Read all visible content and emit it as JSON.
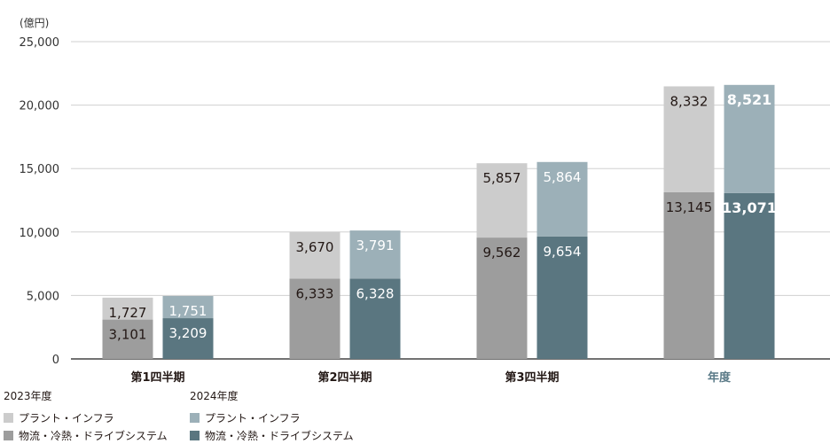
{
  "chart_data": {
    "type": "bar",
    "stacked": true,
    "unit_label": "(億円)",
    "categories": [
      "第1四半期",
      "第2四半期",
      "第3四半期",
      "年度"
    ],
    "y_ticks": [
      "0",
      "5,000",
      "10,000",
      "15,000",
      "20,000",
      "25,000"
    ],
    "ylim": [
      0,
      25000
    ],
    "grid": true,
    "groups": [
      {
        "year": "2023年度",
        "series": [
          {
            "name": "物流・冷熱・ドライブシステム",
            "color": "#9d9d9d",
            "values": [
              3101,
              6333,
              9562,
              13145
            ],
            "labels": [
              "3,101",
              "6,333",
              "9,562",
              "13,145"
            ]
          },
          {
            "name": "プラント・インフラ",
            "color": "#cccccc",
            "values": [
              1727,
              3670,
              5857,
              8332
            ],
            "labels": [
              "1,727",
              "3,670",
              "5,857",
              "8,332"
            ]
          }
        ]
      },
      {
        "year": "2024年度",
        "series": [
          {
            "name": "物流・冷熱・ドライブシステム",
            "color": "#5a7680",
            "values": [
              3209,
              6328,
              9654,
              13071
            ],
            "labels": [
              "3,209",
              "6,328",
              "9,654",
              "13,071"
            ]
          },
          {
            "name": "プラント・インフラ",
            "color": "#9cb0b8",
            "values": [
              1751,
              3791,
              5864,
              8521
            ],
            "labels": [
              "1,751",
              "3,791",
              "5,864",
              "8,521"
            ]
          }
        ]
      }
    ]
  },
  "legend": {
    "group_2023": {
      "title": "2023年度",
      "items": [
        {
          "label": "プラント・インフラ",
          "color": "#cccccc"
        },
        {
          "label": "物流・冷熱・ドライブシステム",
          "color": "#9d9d9d"
        }
      ]
    },
    "group_2024": {
      "title": "2024年度",
      "items": [
        {
          "label": "プラント・インフラ",
          "color": "#9cb0b8"
        },
        {
          "label": "物流・冷熱・ドライブシステム",
          "color": "#5a7680"
        }
      ]
    }
  }
}
